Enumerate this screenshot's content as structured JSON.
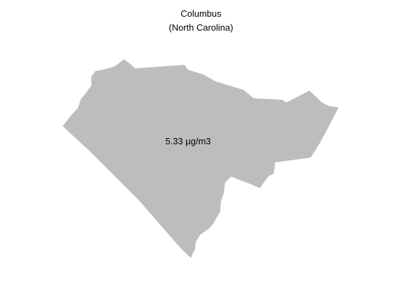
{
  "map": {
    "title": "Columbus",
    "subtitle": "(North Carolina)",
    "region_fill": "#bdbdbd",
    "background": "#ffffff",
    "value_label": "5.33 µg/m3"
  }
}
